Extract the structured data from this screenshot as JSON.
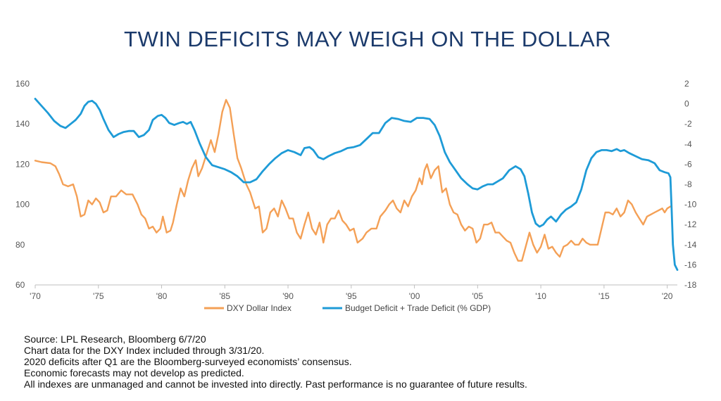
{
  "title": "TWIN DEFICITS MAY WEIGH ON THE DOLLAR",
  "chart_data": {
    "type": "line",
    "x_tick_labels": [
      "'70",
      "'75",
      "'80",
      "'85",
      "'90",
      "'95",
      "'00",
      "'05",
      "'10",
      "'15",
      "'20"
    ],
    "x_tick_years": [
      1970,
      1975,
      1980,
      1985,
      1990,
      1995,
      2000,
      2005,
      2010,
      2015,
      2020
    ],
    "xlim": [
      1970,
      2020.8
    ],
    "y_left": {
      "lim": [
        60,
        160
      ],
      "ticks": [
        60,
        80,
        100,
        120,
        140,
        160
      ]
    },
    "y_right": {
      "lim": [
        -18,
        2
      ],
      "ticks": [
        2,
        0,
        -2,
        -4,
        -6,
        -8,
        -10,
        -12,
        -14,
        -16,
        -18
      ]
    },
    "grid": false,
    "legend_position": "bottom",
    "series": [
      {
        "name": "DXY Dollar Index",
        "axis": "left",
        "color": "#f4a056",
        "points": [
          [
            1970.0,
            121.8
          ],
          [
            1970.5,
            121
          ],
          [
            1971.2,
            120.5
          ],
          [
            1971.6,
            119
          ],
          [
            1971.9,
            115
          ],
          [
            1972.2,
            110
          ],
          [
            1972.6,
            109
          ],
          [
            1973.0,
            110
          ],
          [
            1973.3,
            104
          ],
          [
            1973.6,
            94
          ],
          [
            1973.9,
            95
          ],
          [
            1974.2,
            102
          ],
          [
            1974.5,
            100
          ],
          [
            1974.8,
            103
          ],
          [
            1975.1,
            101
          ],
          [
            1975.4,
            96
          ],
          [
            1975.7,
            97
          ],
          [
            1976.0,
            104
          ],
          [
            1976.4,
            104
          ],
          [
            1976.8,
            107
          ],
          [
            1977.2,
            105
          ],
          [
            1977.7,
            105
          ],
          [
            1978.1,
            100
          ],
          [
            1978.4,
            95
          ],
          [
            1978.7,
            93
          ],
          [
            1979.0,
            88
          ],
          [
            1979.3,
            89
          ],
          [
            1979.6,
            86
          ],
          [
            1979.9,
            88
          ],
          [
            1980.1,
            94
          ],
          [
            1980.4,
            86
          ],
          [
            1980.7,
            87
          ],
          [
            1980.9,
            91
          ],
          [
            1981.2,
            100
          ],
          [
            1981.5,
            108
          ],
          [
            1981.8,
            104
          ],
          [
            1982.1,
            112
          ],
          [
            1982.4,
            118
          ],
          [
            1982.7,
            122
          ],
          [
            1982.9,
            114
          ],
          [
            1983.2,
            118
          ],
          [
            1983.6,
            126
          ],
          [
            1983.9,
            132
          ],
          [
            1984.2,
            126
          ],
          [
            1984.5,
            135
          ],
          [
            1984.8,
            146
          ],
          [
            1985.1,
            152
          ],
          [
            1985.4,
            148
          ],
          [
            1985.7,
            135
          ],
          [
            1986.0,
            123
          ],
          [
            1986.3,
            118
          ],
          [
            1986.7,
            110
          ],
          [
            1987.0,
            106
          ],
          [
            1987.4,
            98
          ],
          [
            1987.7,
            99
          ],
          [
            1988.0,
            86
          ],
          [
            1988.3,
            88
          ],
          [
            1988.6,
            96
          ],
          [
            1988.9,
            98
          ],
          [
            1989.2,
            94
          ],
          [
            1989.5,
            102
          ],
          [
            1989.8,
            98
          ],
          [
            1990.1,
            93
          ],
          [
            1990.4,
            93
          ],
          [
            1990.7,
            86
          ],
          [
            1991.0,
            83
          ],
          [
            1991.3,
            90
          ],
          [
            1991.6,
            96
          ],
          [
            1991.9,
            88
          ],
          [
            1992.2,
            85
          ],
          [
            1992.5,
            91
          ],
          [
            1992.8,
            81
          ],
          [
            1993.1,
            90
          ],
          [
            1993.4,
            93
          ],
          [
            1993.7,
            93
          ],
          [
            1994.0,
            97
          ],
          [
            1994.3,
            92
          ],
          [
            1994.6,
            90
          ],
          [
            1994.9,
            87
          ],
          [
            1995.2,
            88
          ],
          [
            1995.5,
            81
          ],
          [
            1995.9,
            83
          ],
          [
            1996.2,
            86
          ],
          [
            1996.6,
            88
          ],
          [
            1997.0,
            88
          ],
          [
            1997.3,
            94
          ],
          [
            1997.7,
            97
          ],
          [
            1998.0,
            100
          ],
          [
            1998.3,
            102
          ],
          [
            1998.6,
            98
          ],
          [
            1998.9,
            96
          ],
          [
            1999.2,
            102
          ],
          [
            1999.5,
            99
          ],
          [
            1999.8,
            104
          ],
          [
            2000.1,
            107
          ],
          [
            2000.4,
            113
          ],
          [
            2000.6,
            110
          ],
          [
            2000.8,
            117
          ],
          [
            2001.0,
            120
          ],
          [
            2001.3,
            113
          ],
          [
            2001.6,
            117
          ],
          [
            2001.9,
            119
          ],
          [
            2002.2,
            106
          ],
          [
            2002.5,
            108
          ],
          [
            2002.8,
            100
          ],
          [
            2003.1,
            96
          ],
          [
            2003.4,
            95
          ],
          [
            2003.7,
            90
          ],
          [
            2004.0,
            87
          ],
          [
            2004.3,
            89
          ],
          [
            2004.6,
            88
          ],
          [
            2004.9,
            81
          ],
          [
            2005.2,
            83
          ],
          [
            2005.5,
            90
          ],
          [
            2005.8,
            90
          ],
          [
            2006.1,
            91
          ],
          [
            2006.4,
            86
          ],
          [
            2006.7,
            86
          ],
          [
            2007.0,
            84
          ],
          [
            2007.3,
            82
          ],
          [
            2007.6,
            81
          ],
          [
            2007.9,
            76
          ],
          [
            2008.2,
            72
          ],
          [
            2008.5,
            72
          ],
          [
            2008.8,
            79
          ],
          [
            2009.1,
            86
          ],
          [
            2009.4,
            80
          ],
          [
            2009.7,
            76
          ],
          [
            2010.0,
            79
          ],
          [
            2010.3,
            85
          ],
          [
            2010.6,
            78
          ],
          [
            2010.9,
            79
          ],
          [
            2011.2,
            76
          ],
          [
            2011.5,
            74
          ],
          [
            2011.8,
            79
          ],
          [
            2012.1,
            80
          ],
          [
            2012.4,
            82
          ],
          [
            2012.7,
            80
          ],
          [
            2013.0,
            80
          ],
          [
            2013.3,
            83
          ],
          [
            2013.6,
            81
          ],
          [
            2013.9,
            80
          ],
          [
            2014.2,
            80
          ],
          [
            2014.5,
            80
          ],
          [
            2014.8,
            88
          ],
          [
            2015.1,
            96
          ],
          [
            2015.4,
            96
          ],
          [
            2015.7,
            95
          ],
          [
            2016.0,
            98
          ],
          [
            2016.3,
            94
          ],
          [
            2016.6,
            96
          ],
          [
            2016.9,
            102
          ],
          [
            2017.2,
            100
          ],
          [
            2017.5,
            96
          ],
          [
            2017.8,
            93
          ],
          [
            2018.1,
            90
          ],
          [
            2018.4,
            94
          ],
          [
            2018.7,
            95
          ],
          [
            2019.0,
            96
          ],
          [
            2019.3,
            97
          ],
          [
            2019.6,
            98
          ],
          [
            2019.8,
            96
          ],
          [
            2020.0,
            98
          ],
          [
            2020.25,
            99
          ]
        ]
      },
      {
        "name": "Budget Deficit + Trade Deficit (% GDP)",
        "axis": "right",
        "color": "#1e9bd7",
        "points": [
          [
            1970.0,
            0.5
          ],
          [
            1970.5,
            -0.2
          ],
          [
            1971.0,
            -0.9
          ],
          [
            1971.5,
            -1.7
          ],
          [
            1972.0,
            -2.2
          ],
          [
            1972.4,
            -2.4
          ],
          [
            1972.8,
            -2.0
          ],
          [
            1973.2,
            -1.6
          ],
          [
            1973.6,
            -1.0
          ],
          [
            1973.9,
            -0.2
          ],
          [
            1974.2,
            0.2
          ],
          [
            1974.5,
            0.3
          ],
          [
            1974.8,
            0.0
          ],
          [
            1975.1,
            -0.6
          ],
          [
            1975.4,
            -1.5
          ],
          [
            1975.8,
            -2.6
          ],
          [
            1976.2,
            -3.3
          ],
          [
            1976.6,
            -3.0
          ],
          [
            1977.0,
            -2.8
          ],
          [
            1977.4,
            -2.7
          ],
          [
            1977.8,
            -2.7
          ],
          [
            1978.2,
            -3.3
          ],
          [
            1978.6,
            -3.1
          ],
          [
            1979.0,
            -2.6
          ],
          [
            1979.3,
            -1.6
          ],
          [
            1979.7,
            -1.2
          ],
          [
            1980.0,
            -1.1
          ],
          [
            1980.3,
            -1.4
          ],
          [
            1980.6,
            -1.9
          ],
          [
            1981.0,
            -2.1
          ],
          [
            1981.4,
            -1.9
          ],
          [
            1981.7,
            -1.8
          ],
          [
            1982.0,
            -2.0
          ],
          [
            1982.3,
            -1.8
          ],
          [
            1982.6,
            -2.6
          ],
          [
            1983.0,
            -3.9
          ],
          [
            1983.5,
            -5.3
          ],
          [
            1984.0,
            -6.1
          ],
          [
            1984.5,
            -6.3
          ],
          [
            1985.0,
            -6.5
          ],
          [
            1985.5,
            -6.8
          ],
          [
            1986.0,
            -7.2
          ],
          [
            1986.5,
            -7.8
          ],
          [
            1987.0,
            -7.8
          ],
          [
            1987.5,
            -7.5
          ],
          [
            1988.0,
            -6.7
          ],
          [
            1988.5,
            -6.0
          ],
          [
            1989.0,
            -5.4
          ],
          [
            1989.5,
            -4.9
          ],
          [
            1990.0,
            -4.6
          ],
          [
            1990.5,
            -4.8
          ],
          [
            1991.0,
            -5.1
          ],
          [
            1991.3,
            -4.4
          ],
          [
            1991.7,
            -4.3
          ],
          [
            1992.0,
            -4.6
          ],
          [
            1992.4,
            -5.3
          ],
          [
            1992.8,
            -5.5
          ],
          [
            1993.2,
            -5.2
          ],
          [
            1993.7,
            -4.9
          ],
          [
            1994.2,
            -4.7
          ],
          [
            1994.7,
            -4.4
          ],
          [
            1995.2,
            -4.3
          ],
          [
            1995.7,
            -4.1
          ],
          [
            1996.2,
            -3.5
          ],
          [
            1996.7,
            -2.9
          ],
          [
            1997.2,
            -2.9
          ],
          [
            1997.7,
            -1.9
          ],
          [
            1998.2,
            -1.4
          ],
          [
            1998.7,
            -1.5
          ],
          [
            1999.2,
            -1.7
          ],
          [
            1999.7,
            -1.8
          ],
          [
            2000.2,
            -1.4
          ],
          [
            2000.7,
            -1.4
          ],
          [
            2001.2,
            -1.5
          ],
          [
            2001.6,
            -2.1
          ],
          [
            2002.0,
            -3.2
          ],
          [
            2002.4,
            -4.8
          ],
          [
            2002.8,
            -5.8
          ],
          [
            2003.2,
            -6.5
          ],
          [
            2003.7,
            -7.4
          ],
          [
            2004.2,
            -8.0
          ],
          [
            2004.6,
            -8.4
          ],
          [
            2005.0,
            -8.5
          ],
          [
            2005.4,
            -8.2
          ],
          [
            2005.8,
            -8.0
          ],
          [
            2006.2,
            -8.0
          ],
          [
            2006.6,
            -7.7
          ],
          [
            2007.0,
            -7.4
          ],
          [
            2007.5,
            -6.6
          ],
          [
            2008.0,
            -6.2
          ],
          [
            2008.4,
            -6.5
          ],
          [
            2008.7,
            -7.2
          ],
          [
            2009.0,
            -8.9
          ],
          [
            2009.3,
            -10.8
          ],
          [
            2009.6,
            -11.9
          ],
          [
            2009.9,
            -12.2
          ],
          [
            2010.2,
            -12.0
          ],
          [
            2010.5,
            -11.5
          ],
          [
            2010.8,
            -11.2
          ],
          [
            2011.2,
            -11.7
          ],
          [
            2011.6,
            -11.0
          ],
          [
            2012.0,
            -10.5
          ],
          [
            2012.4,
            -10.2
          ],
          [
            2012.8,
            -9.8
          ],
          [
            2013.2,
            -8.5
          ],
          [
            2013.6,
            -6.6
          ],
          [
            2014.0,
            -5.4
          ],
          [
            2014.4,
            -4.8
          ],
          [
            2014.8,
            -4.6
          ],
          [
            2015.2,
            -4.6
          ],
          [
            2015.6,
            -4.7
          ],
          [
            2016.0,
            -4.5
          ],
          [
            2016.3,
            -4.7
          ],
          [
            2016.6,
            -4.6
          ],
          [
            2017.0,
            -4.9
          ],
          [
            2017.5,
            -5.2
          ],
          [
            2018.0,
            -5.5
          ],
          [
            2018.5,
            -5.6
          ],
          [
            2019.0,
            -5.9
          ],
          [
            2019.4,
            -6.6
          ],
          [
            2019.8,
            -6.8
          ],
          [
            2020.1,
            -6.9
          ],
          [
            2020.25,
            -7.3
          ],
          [
            2020.35,
            -10.5
          ],
          [
            2020.45,
            -14.0
          ],
          [
            2020.6,
            -16.0
          ],
          [
            2020.8,
            -16.5
          ]
        ]
      }
    ]
  },
  "legend": {
    "dxy_label": "DXY Dollar Index",
    "deficit_label": "Budget Deficit + Trade Deficit (% GDP)"
  },
  "notes": {
    "source": "Source: LPL Research, Bloomberg 6/7/20",
    "line2": "Chart data for the DXY Index included through 3/31/20.",
    "line3": "2020 deficits after Q1 are the Bloomberg-surveyed economists’ consensus.",
    "line4": "Economic forecasts may not develop as predicted.",
    "disclaimer": "All indexes are unmanaged and cannot be invested into directly. Past performance is no guarantee of future results."
  }
}
